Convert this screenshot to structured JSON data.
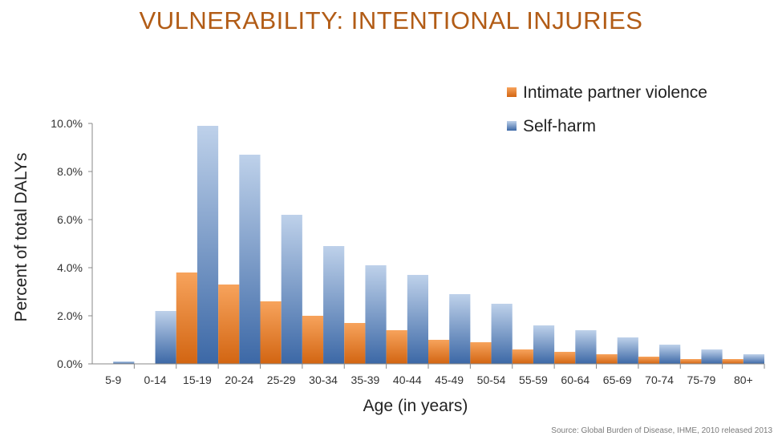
{
  "title": "VULNERABILITY: INTENTIONAL INJURIES",
  "source": "Source: Global Burden of Disease, IHME, 2010 released 2013",
  "colors": {
    "title": "#b25c16",
    "ipv_light": "#f7a35c",
    "ipv_dark": "#d26512",
    "selfharm_light": "#bed1ea",
    "selfharm_dark": "#3c68a6"
  },
  "chart_data": {
    "type": "bar",
    "xlabel": "Age (in years)",
    "ylabel": "Percent of total DALYs",
    "ylim": [
      0,
      10
    ],
    "yticks": [
      "0.0%",
      "2.0%",
      "4.0%",
      "6.0%",
      "8.0%",
      "10.0%"
    ],
    "grid": false,
    "legend_position": "top-right",
    "categories": [
      "5-9",
      "0-14",
      "15-19",
      "20-24",
      "25-29",
      "30-34",
      "35-39",
      "40-44",
      "45-49",
      "50-54",
      "55-59",
      "60-64",
      "65-69",
      "70-74",
      "75-79",
      "80+"
    ],
    "series": [
      {
        "name": "Intimate partner violence",
        "color": "#e8802e",
        "values": [
          0.0,
          0.0,
          3.8,
          3.3,
          2.6,
          2.0,
          1.7,
          1.4,
          1.0,
          0.9,
          0.6,
          0.5,
          0.4,
          0.3,
          0.2,
          0.2
        ]
      },
      {
        "name": "Self-harm",
        "color": "#5b86c2",
        "values": [
          0.1,
          2.2,
          9.9,
          8.7,
          6.2,
          4.9,
          4.1,
          3.7,
          2.9,
          2.5,
          1.6,
          1.4,
          1.1,
          0.8,
          0.6,
          0.4
        ]
      }
    ]
  }
}
